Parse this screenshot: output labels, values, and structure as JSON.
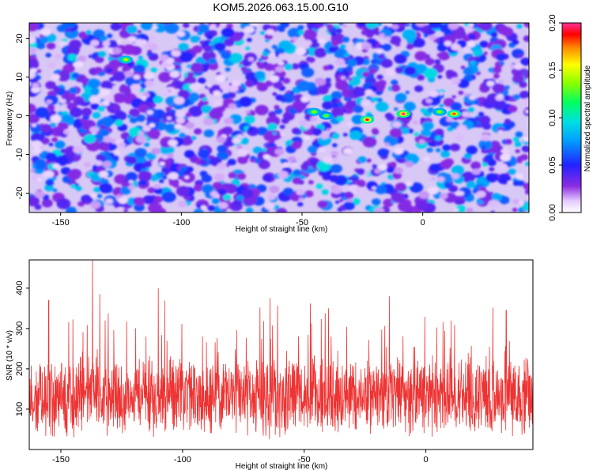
{
  "title": "KOM5.2026.063.15.00.G10",
  "chart_data": [
    {
      "type": "heatmap",
      "xlabel": "Height of straight line (km)",
      "ylabel": "Frequency (Hz)",
      "xlim": [
        -163,
        44
      ],
      "ylim": [
        -25,
        24
      ],
      "x_ticks": [
        -150,
        -100,
        -50,
        0
      ],
      "y_ticks": [
        -20,
        -10,
        0,
        10,
        20
      ],
      "colorbar": {
        "label": "Normalized spectral amplitude",
        "range": [
          0.0,
          0.2
        ],
        "ticks": [
          0.0,
          0.05,
          0.1,
          0.15,
          0.2
        ],
        "tick_labels": [
          "0.00",
          "0.05",
          "0.10",
          "0.15",
          "0.20"
        ]
      },
      "hotspots": [
        {
          "x": -123,
          "y": 14.5,
          "value": 0.15
        },
        {
          "x": -45,
          "y": 1,
          "value": 0.14
        },
        {
          "x": -40,
          "y": 0,
          "value": 0.13
        },
        {
          "x": -23,
          "y": -1,
          "value": 0.19
        },
        {
          "x": -8,
          "y": 0.5,
          "value": 0.2
        },
        {
          "x": 7,
          "y": 1,
          "value": 0.14
        },
        {
          "x": 13,
          "y": 0.5,
          "value": 0.18
        }
      ]
    },
    {
      "type": "line",
      "xlabel": "Height of straight line (km)",
      "ylabel": "SNR (10 * v/v)",
      "xlim": [
        -163,
        44
      ],
      "ylim": [
        0,
        470
      ],
      "x_ticks": [
        -150,
        -100,
        -50,
        0
      ],
      "y_ticks": [
        100,
        200,
        300,
        400
      ],
      "series_color": "#ee3333",
      "baseline_mean": 130,
      "peaks": [
        {
          "x": -155,
          "y": 370
        },
        {
          "x": -137,
          "y": 470
        },
        {
          "x": -134,
          "y": 385
        },
        {
          "x": -110,
          "y": 400
        },
        {
          "x": -64,
          "y": 375
        },
        {
          "x": -40,
          "y": 350
        },
        {
          "x": -15,
          "y": 380
        },
        {
          "x": 33,
          "y": 345
        }
      ]
    }
  ]
}
